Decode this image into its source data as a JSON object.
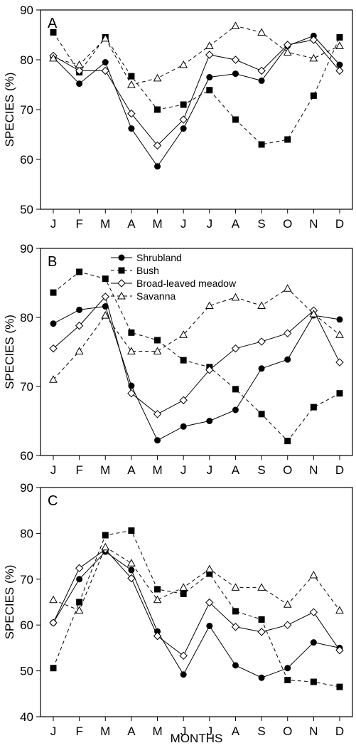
{
  "chart_data": [
    {
      "type": "line",
      "panel_label": "A",
      "categories": [
        "J",
        "F",
        "M",
        "A",
        "M",
        "J",
        "J",
        "A",
        "S",
        "O",
        "N",
        "D"
      ],
      "ylabel": "SPECIES (%)",
      "ylim": [
        50,
        90
      ],
      "yticks": [
        50,
        60,
        70,
        80,
        90
      ],
      "series": [
        {
          "name": "Shrubland",
          "values": [
            80.5,
            75.2,
            79.5,
            66.2,
            58.6,
            66.2,
            76.5,
            77.2,
            75.8,
            82.8,
            84.8,
            79.0
          ]
        },
        {
          "name": "Bush",
          "values": [
            85.5,
            77.5,
            84.5,
            76.7,
            70.0,
            71.0,
            73.9,
            68.0,
            63.0,
            64.0,
            72.8,
            84.5
          ]
        },
        {
          "name": "Broad-leaved meadow",
          "values": [
            80.8,
            77.8,
            77.8,
            69.2,
            62.8,
            68.0,
            81.0,
            80.0,
            77.8,
            83.0,
            84.0,
            77.8
          ]
        },
        {
          "name": "Savanna",
          "values": [
            80.3,
            79.0,
            84.3,
            75.0,
            76.3,
            79.0,
            82.8,
            86.8,
            85.5,
            81.5,
            80.3,
            82.8
          ]
        }
      ]
    },
    {
      "type": "line",
      "panel_label": "B",
      "categories": [
        "J",
        "F",
        "M",
        "A",
        "M",
        "J",
        "J",
        "A",
        "S",
        "O",
        "N",
        "D"
      ],
      "ylabel": "SPECIES (%)",
      "ylim": [
        60,
        90
      ],
      "yticks": [
        60,
        70,
        80,
        90
      ],
      "legend_placement": "top-center",
      "series": [
        {
          "name": "Shrubland",
          "values": [
            79.1,
            81.1,
            81.6,
            70.1,
            62.2,
            64.2,
            65.0,
            66.6,
            72.6,
            73.9,
            80.3,
            79.7
          ]
        },
        {
          "name": "Bush",
          "values": [
            83.6,
            86.6,
            85.6,
            77.8,
            76.7,
            73.8,
            72.8,
            69.6,
            66.0,
            62.1,
            67.0,
            69.0
          ]
        },
        {
          "name": "Broad-leaved meadow",
          "values": [
            75.5,
            78.8,
            83.0,
            69.0,
            66.0,
            68.0,
            72.4,
            75.5,
            76.5,
            77.7,
            81.0,
            73.5
          ]
        },
        {
          "name": "Savanna",
          "values": [
            71.0,
            75.1,
            80.3,
            75.1,
            75.1,
            77.5,
            81.7,
            82.9,
            81.7,
            84.2,
            80.5,
            77.5
          ]
        }
      ]
    },
    {
      "type": "line",
      "panel_label": "C",
      "categories": [
        "J",
        "F",
        "M",
        "A",
        "M",
        "J",
        "J",
        "A",
        "S",
        "O",
        "N",
        "D"
      ],
      "ylabel": "SPECIES (%)",
      "xlabel": "MONTHS",
      "ylim": [
        40,
        90
      ],
      "yticks": [
        40,
        50,
        60,
        70,
        80,
        90
      ],
      "series": [
        {
          "name": "Shrubland",
          "values": [
            60.5,
            70.0,
            76.0,
            72.0,
            58.6,
            49.2,
            59.8,
            51.2,
            48.5,
            50.6,
            56.2,
            55.0
          ]
        },
        {
          "name": "Bush",
          "values": [
            50.6,
            65.0,
            79.6,
            80.6,
            67.8,
            66.8,
            71.2,
            63.0,
            61.2,
            48.0,
            47.6,
            46.5
          ]
        },
        {
          "name": "Broad-leaved meadow",
          "values": [
            60.5,
            72.4,
            76.5,
            70.2,
            57.6,
            53.3,
            64.9,
            59.6,
            58.5,
            60.0,
            62.8,
            54.5
          ]
        },
        {
          "name": "Savanna",
          "values": [
            65.5,
            63.2,
            77.0,
            73.5,
            65.5,
            68.2,
            72.2,
            68.2,
            68.2,
            64.5,
            70.9,
            63.2
          ]
        }
      ]
    }
  ]
}
